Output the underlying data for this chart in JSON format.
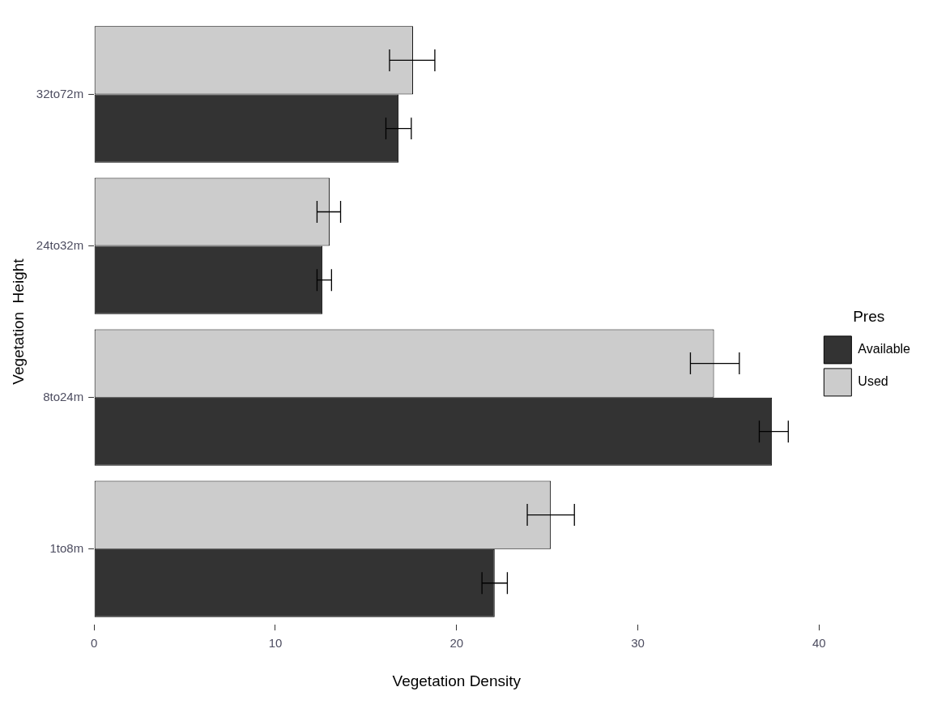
{
  "chart_data": {
    "type": "bar",
    "orientation": "horizontal",
    "xlabel": "Vegetation Density",
    "ylabel": "Vegetation  Height",
    "legend_title": "Pres",
    "categories": [
      "32to72m",
      "24to32m",
      "8to24m",
      "1to8m"
    ],
    "series": [
      {
        "name": "Available",
        "color": "#333333",
        "values": [
          16.8,
          12.6,
          37.4,
          22.1
        ],
        "errors": [
          [
            16.1,
            17.5
          ],
          [
            12.3,
            13.1
          ],
          [
            36.7,
            38.3
          ],
          [
            21.4,
            22.8
          ]
        ]
      },
      {
        "name": "Used",
        "color": "#cccccc",
        "values": [
          17.6,
          13.0,
          34.2,
          25.2
        ],
        "errors": [
          [
            16.3,
            18.8
          ],
          [
            12.3,
            13.6
          ],
          [
            32.9,
            35.6
          ],
          [
            23.9,
            26.5
          ]
        ]
      }
    ],
    "xlim": [
      0,
      40
    ],
    "xticks": [
      0,
      10,
      20,
      30,
      40
    ],
    "grid": false,
    "legend": "right"
  }
}
